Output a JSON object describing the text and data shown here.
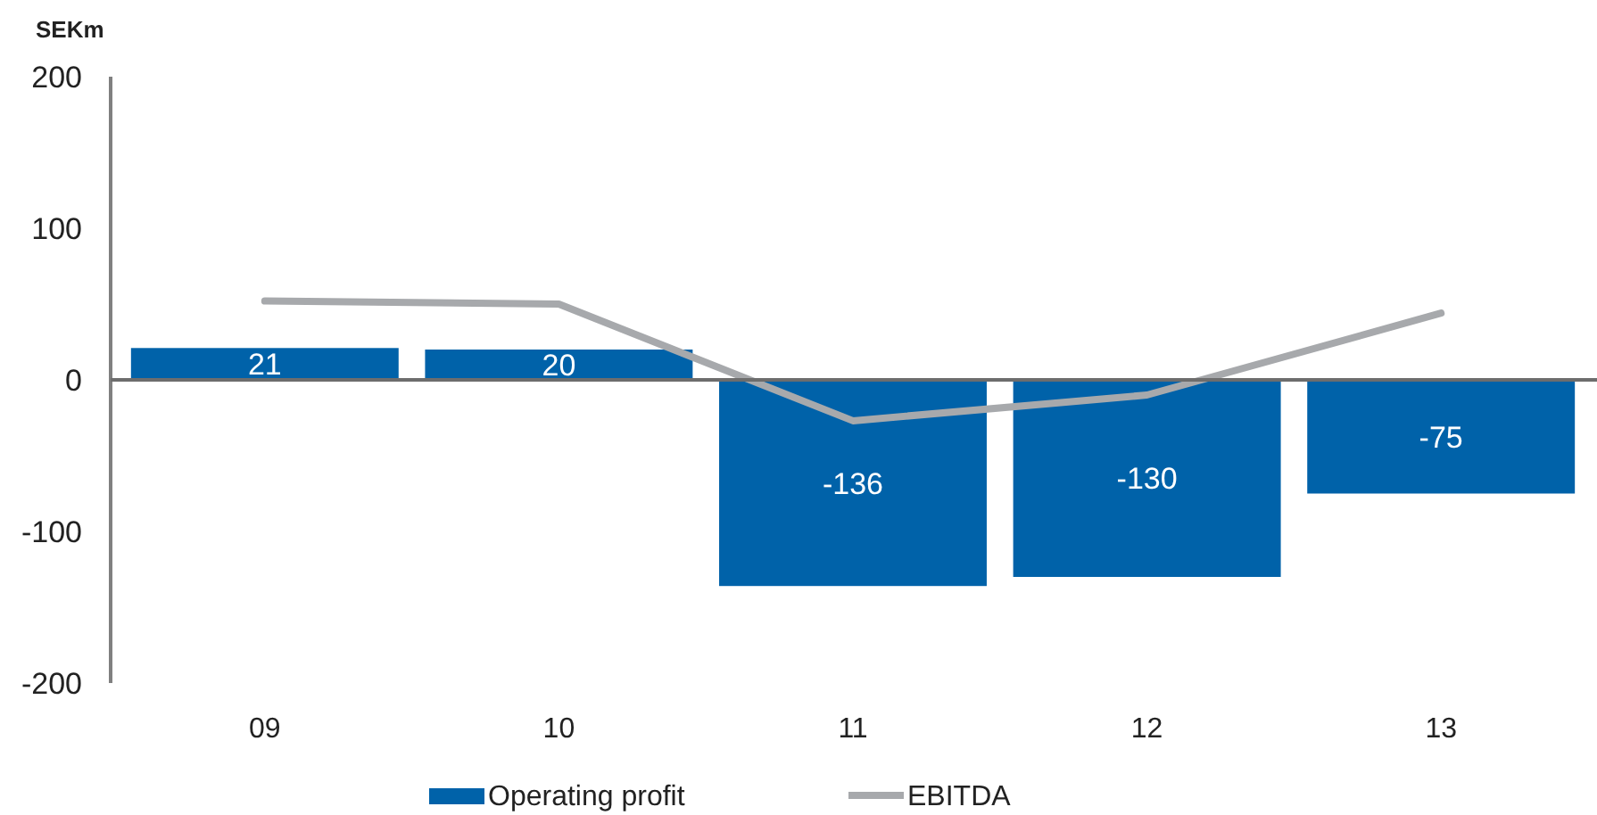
{
  "chart_data": {
    "type": "bar",
    "ylabel": "SEKm",
    "categories": [
      "09",
      "10",
      "11",
      "12",
      "13"
    ],
    "series": [
      {
        "name": "Operating profit",
        "color": "#0062a9",
        "values": [
          21,
          20,
          -136,
          -130,
          -75
        ],
        "value_labels": [
          "21",
          "20",
          "-136",
          "-130",
          "-75"
        ]
      },
      {
        "name": "EBITDA",
        "type": "line",
        "color": "#a7a9ac",
        "values": [
          52,
          50,
          -27,
          -10,
          44
        ],
        "line_style": "solid"
      }
    ],
    "ylim": [
      -200,
      200
    ],
    "yticks": [
      -200,
      -100,
      0,
      100,
      200
    ],
    "legend": "bottom"
  }
}
